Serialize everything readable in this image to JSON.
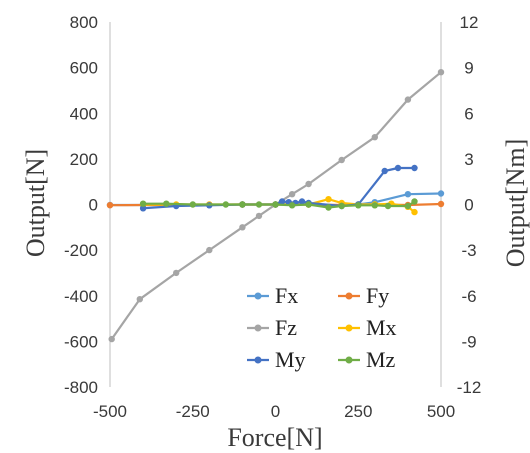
{
  "chart_data": {
    "type": "line",
    "xlabel": "Force[N]",
    "ylabel": "Output[N]",
    "y2label": "Output[Nm]",
    "xlim": [
      -500,
      500
    ],
    "ylim": [
      -800,
      800
    ],
    "y2lim": [
      -12,
      12
    ],
    "x_ticks": [
      "-500",
      "-250",
      "0",
      "250",
      "500"
    ],
    "y_ticks": [
      "800",
      "600",
      "400",
      "200",
      "0",
      "-200",
      "-400",
      "-600",
      "-800"
    ],
    "y2_ticks": [
      "12",
      "9",
      "6",
      "3",
      "0",
      "-3",
      "-6",
      "-9",
      "-12"
    ],
    "grid": false,
    "legend_position": "bottom-right",
    "series": [
      {
        "name": "Fx",
        "color": "#5b9bd5",
        "axis": "left",
        "points": [
          [
            -500,
            -2
          ],
          [
            -400,
            -2
          ],
          [
            -300,
            -2
          ],
          [
            -200,
            -1
          ],
          [
            -100,
            0
          ],
          [
            0,
            0
          ],
          [
            100,
            0
          ],
          [
            200,
            -5
          ],
          [
            250,
            0
          ],
          [
            300,
            10
          ],
          [
            400,
            45
          ],
          [
            500,
            48
          ]
        ]
      },
      {
        "name": "Fy",
        "color": "#ed7d31",
        "axis": "left",
        "points": [
          [
            -500,
            -3
          ],
          [
            -400,
            -2
          ],
          [
            -300,
            -2
          ],
          [
            -200,
            -1
          ],
          [
            -100,
            0
          ],
          [
            0,
            0
          ],
          [
            100,
            0
          ],
          [
            200,
            -2
          ],
          [
            300,
            0
          ],
          [
            400,
            -2
          ],
          [
            500,
            2
          ]
        ]
      },
      {
        "name": "Fz",
        "color": "#a5a5a5",
        "axis": "left",
        "points": [
          [
            -495,
            -590
          ],
          [
            -410,
            -415
          ],
          [
            -300,
            -300
          ],
          [
            -200,
            -200
          ],
          [
            -100,
            -100
          ],
          [
            -50,
            -50
          ],
          [
            0,
            0
          ],
          [
            50,
            45
          ],
          [
            100,
            90
          ],
          [
            200,
            195
          ],
          [
            300,
            295
          ],
          [
            400,
            460
          ],
          [
            500,
            580
          ]
        ]
      },
      {
        "name": "Mx",
        "color": "#ffc000",
        "axis": "right",
        "points": [
          [
            -400,
            0
          ],
          [
            -300,
            0
          ],
          [
            -200,
            0
          ],
          [
            -100,
            0
          ],
          [
            0,
            0
          ],
          [
            50,
            0
          ],
          [
            100,
            0
          ],
          [
            160,
            0.35
          ],
          [
            200,
            0.1
          ],
          [
            250,
            0
          ],
          [
            300,
            0
          ],
          [
            350,
            0.05
          ],
          [
            400,
            -0.15
          ],
          [
            420,
            -0.5
          ]
        ]
      },
      {
        "name": "My",
        "color": "#4472c4",
        "axis": "right",
        "points": [
          [
            -400,
            -0.25
          ],
          [
            -300,
            -0.1
          ],
          [
            -200,
            -0.05
          ],
          [
            -100,
            0
          ],
          [
            0,
            0
          ],
          [
            20,
            0.2
          ],
          [
            40,
            0.15
          ],
          [
            60,
            0.1
          ],
          [
            80,
            0.2
          ],
          [
            100,
            0.1
          ],
          [
            200,
            -0.1
          ],
          [
            250,
            0
          ],
          [
            330,
            2.2
          ],
          [
            370,
            2.4
          ],
          [
            420,
            2.4
          ]
        ]
      },
      {
        "name": "Mz",
        "color": "#70ad47",
        "axis": "right",
        "points": [
          [
            -400,
            0.05
          ],
          [
            -330,
            0.05
          ],
          [
            -250,
            0
          ],
          [
            -150,
            0
          ],
          [
            -100,
            0
          ],
          [
            -50,
            0
          ],
          [
            0,
            0
          ],
          [
            50,
            -0.05
          ],
          [
            100,
            0
          ],
          [
            160,
            -0.2
          ],
          [
            200,
            -0.1
          ],
          [
            250,
            -0.05
          ],
          [
            300,
            -0.05
          ],
          [
            340,
            -0.1
          ],
          [
            400,
            -0.1
          ],
          [
            420,
            0.2
          ]
        ]
      }
    ]
  }
}
